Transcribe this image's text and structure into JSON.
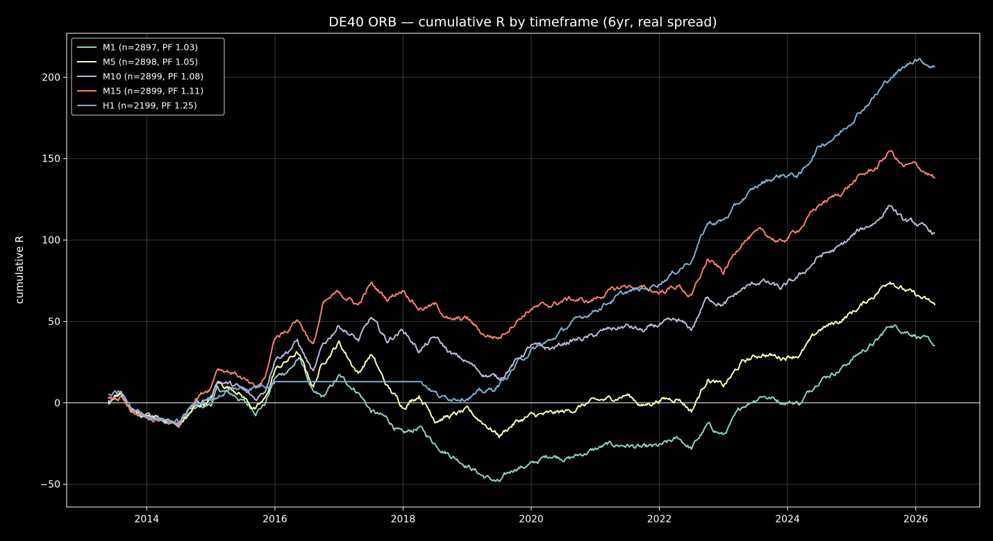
{
  "chart_data": {
    "type": "line",
    "title": "DE40 ORB — cumulative R by timeframe (6yr, real spread)",
    "xlabel": "",
    "ylabel": "cumulative R",
    "xlim": [
      2012.75,
      2027.0
    ],
    "ylim": [
      -64,
      227
    ],
    "xticks": [
      2014,
      2016,
      2018,
      2020,
      2022,
      2024,
      2026
    ],
    "yticks": [
      -50,
      0,
      50,
      100,
      150,
      200
    ],
    "grid": true,
    "zero_line": true,
    "legend_position": "top-left",
    "series": [
      {
        "name": "M1 (n=2897, PF 1.03)",
        "color": "#8dd3c7",
        "x": [
          2013.4,
          2013.6,
          2013.75,
          2014.0,
          2014.3,
          2014.5,
          2014.75,
          2015.0,
          2015.1,
          2015.4,
          2015.7,
          2015.85,
          2016.0,
          2016.2,
          2016.4,
          2016.6,
          2016.75,
          2017.0,
          2017.3,
          2017.5,
          2017.75,
          2018.0,
          2018.25,
          2018.5,
          2018.75,
          2019.0,
          2019.25,
          2019.5,
          2019.75,
          2020.0,
          2020.3,
          2020.6,
          2020.9,
          2021.2,
          2021.5,
          2021.75,
          2022.0,
          2022.3,
          2022.5,
          2022.75,
          2023.0,
          2023.3,
          2023.6,
          2023.9,
          2024.2,
          2024.5,
          2024.8,
          2025.1,
          2025.4,
          2025.6,
          2025.8,
          2026.0,
          2026.3
        ],
        "y": [
          -1,
          5,
          -5,
          -9,
          -10,
          -14,
          -4,
          -1,
          8,
          4,
          -5,
          0,
          15,
          20,
          27,
          5,
          3,
          16,
          7,
          -5,
          -10,
          -20,
          -15,
          -25,
          -32,
          -38,
          -45,
          -49,
          -40,
          -38,
          -32,
          -34,
          -30,
          -26,
          -26,
          -28,
          -27,
          -22,
          -28,
          -14,
          -20,
          -2,
          5,
          1,
          0,
          15,
          20,
          30,
          38,
          48,
          45,
          42,
          35
        ]
      },
      {
        "name": "M5 (n=2898, PF 1.05)",
        "color": "#ffffb3",
        "x": [
          2013.4,
          2013.6,
          2013.75,
          2014.0,
          2014.3,
          2014.5,
          2014.75,
          2015.0,
          2015.1,
          2015.4,
          2015.7,
          2015.85,
          2016.0,
          2016.2,
          2016.35,
          2016.6,
          2016.75,
          2017.0,
          2017.3,
          2017.5,
          2017.75,
          2018.0,
          2018.25,
          2018.5,
          2018.75,
          2019.0,
          2019.25,
          2019.5,
          2019.75,
          2020.0,
          2020.3,
          2020.6,
          2020.9,
          2021.2,
          2021.5,
          2021.75,
          2022.0,
          2022.3,
          2022.5,
          2022.75,
          2023.0,
          2023.3,
          2023.6,
          2023.9,
          2024.2,
          2024.5,
          2024.8,
          2025.1,
          2025.4,
          2025.6,
          2025.8,
          2026.0,
          2026.3
        ],
        "y": [
          0,
          5,
          -5,
          -8,
          -10,
          -14,
          -3,
          2,
          12,
          8,
          -4,
          2,
          20,
          26,
          31,
          10,
          25,
          37,
          18,
          30,
          10,
          -2,
          5,
          -10,
          -8,
          -5,
          -12,
          -20,
          -12,
          -8,
          -7,
          -5,
          0,
          2,
          5,
          -2,
          2,
          3,
          -5,
          15,
          10,
          25,
          30,
          28,
          30,
          45,
          50,
          58,
          68,
          76,
          70,
          66,
          60
        ]
      },
      {
        "name": "M10 (n=2899, PF 1.08)",
        "color": "#bebada",
        "x": [
          2013.4,
          2013.6,
          2013.75,
          2014.0,
          2014.3,
          2014.5,
          2014.75,
          2015.0,
          2015.1,
          2015.4,
          2015.7,
          2015.85,
          2016.0,
          2016.2,
          2016.35,
          2016.6,
          2016.75,
          2017.0,
          2017.3,
          2017.5,
          2017.75,
          2018.0,
          2018.25,
          2018.5,
          2018.75,
          2019.0,
          2019.25,
          2019.5,
          2019.75,
          2020.0,
          2020.3,
          2020.6,
          2020.9,
          2021.2,
          2021.5,
          2021.75,
          2022.0,
          2022.3,
          2022.5,
          2022.75,
          2023.0,
          2023.3,
          2023.6,
          2023.9,
          2024.2,
          2024.5,
          2024.8,
          2025.1,
          2025.4,
          2025.6,
          2025.8,
          2026.0,
          2026.3
        ],
        "y": [
          1,
          4,
          -5,
          -8,
          -11,
          -13,
          0,
          3,
          14,
          10,
          2,
          8,
          28,
          32,
          38,
          18,
          35,
          48,
          38,
          52,
          38,
          45,
          32,
          40,
          30,
          25,
          18,
          15,
          25,
          35,
          33,
          38,
          40,
          45,
          47,
          44,
          48,
          50,
          45,
          65,
          60,
          70,
          75,
          70,
          78,
          90,
          95,
          105,
          112,
          122,
          112,
          110,
          104
        ]
      },
      {
        "name": "M15 (n=2899, PF 1.11)",
        "color": "#fb8072",
        "x": [
          2013.4,
          2013.6,
          2013.75,
          2014.0,
          2014.3,
          2014.5,
          2014.75,
          2015.0,
          2015.1,
          2015.4,
          2015.7,
          2015.85,
          2016.0,
          2016.2,
          2016.35,
          2016.6,
          2016.75,
          2017.0,
          2017.3,
          2017.5,
          2017.75,
          2018.0,
          2018.25,
          2018.5,
          2018.75,
          2019.0,
          2019.25,
          2019.5,
          2019.75,
          2020.0,
          2020.3,
          2020.6,
          2020.9,
          2021.2,
          2021.5,
          2021.75,
          2022.0,
          2022.3,
          2022.5,
          2022.75,
          2023.0,
          2023.3,
          2023.6,
          2023.9,
          2024.2,
          2024.5,
          2024.8,
          2025.1,
          2025.4,
          2025.6,
          2025.8,
          2026.0,
          2026.3
        ],
        "y": [
          2,
          3,
          -6,
          -10,
          -12,
          -13,
          3,
          10,
          22,
          18,
          8,
          15,
          40,
          45,
          52,
          35,
          60,
          68,
          60,
          73,
          64,
          70,
          58,
          60,
          50,
          52,
          42,
          40,
          50,
          58,
          60,
          64,
          62,
          68,
          72,
          70,
          68,
          72,
          65,
          88,
          80,
          100,
          105,
          98,
          108,
          122,
          128,
          138,
          145,
          155,
          145,
          146,
          138
        ]
      },
      {
        "name": "H1 (n=2199, PF 1.25)",
        "color": "#80b1d3",
        "x": [
          2013.4,
          2013.6,
          2013.75,
          2014.0,
          2014.3,
          2014.5,
          2014.75,
          2015.0,
          2015.3,
          2015.7,
          2016.0,
          2016.5,
          2017.0,
          2017.5,
          2018.0,
          2018.3,
          2018.6,
          2019.0,
          2019.4,
          2019.6,
          2019.8,
          2020.0,
          2020.3,
          2020.6,
          2020.9,
          2021.2,
          2021.5,
          2021.8,
          2022.0,
          2022.3,
          2022.5,
          2022.75,
          2023.0,
          2023.3,
          2023.6,
          2023.9,
          2024.2,
          2024.5,
          2024.8,
          2025.1,
          2025.4,
          2025.6,
          2025.8,
          2026.0,
          2026.3
        ],
        "y": [
          4,
          6,
          -3,
          -8,
          -10,
          -12,
          0,
          2,
          8,
          10,
          13,
          13,
          13,
          13,
          13,
          13,
          3,
          4,
          8,
          15,
          25,
          32,
          38,
          48,
          55,
          62,
          68,
          70,
          74,
          82,
          88,
          110,
          112,
          125,
          135,
          140,
          140,
          158,
          165,
          178,
          190,
          200,
          205,
          212,
          206
        ]
      }
    ]
  }
}
